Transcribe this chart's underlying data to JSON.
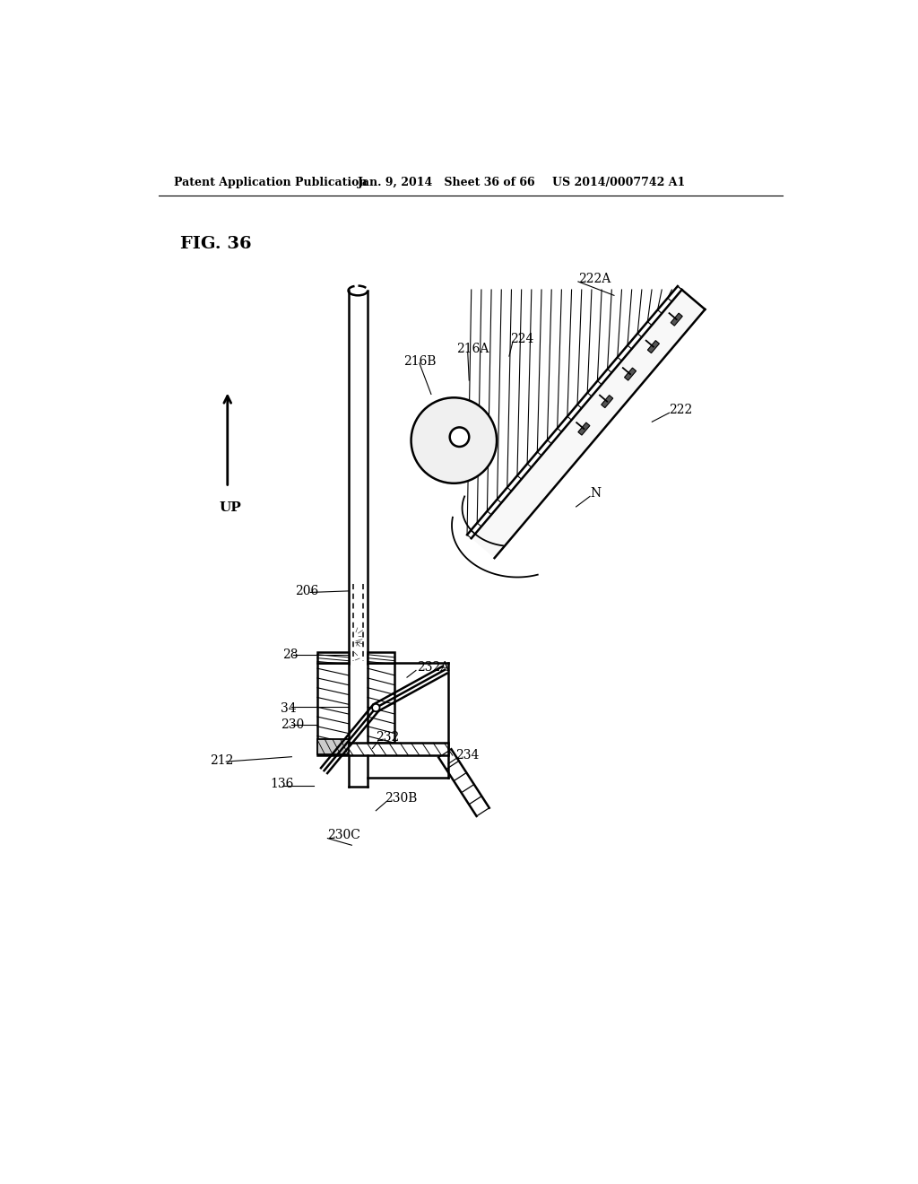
{
  "bg_color": "#ffffff",
  "header_left": "Patent Application Publication",
  "header_mid": "Jan. 9, 2014   Sheet 36 of 66",
  "header_right": "US 2014/0007742 A1",
  "fig_label": "FIG. 36"
}
